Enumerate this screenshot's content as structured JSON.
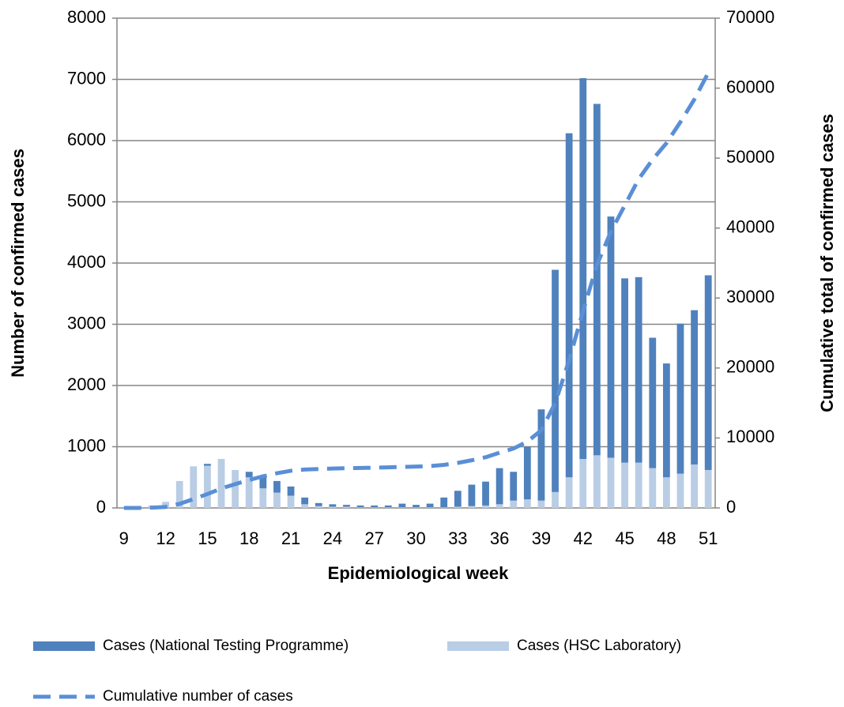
{
  "chart_data": {
    "type": "bar",
    "stacked": true,
    "x_label": "Epidemiological week",
    "y_label": "Number of confirmed cases",
    "y2_label": "Cumulative total of confirmed cases",
    "categories": [
      9,
      null,
      null,
      12,
      null,
      null,
      15,
      null,
      null,
      18,
      null,
      null,
      21,
      null,
      null,
      24,
      null,
      null,
      27,
      null,
      null,
      30,
      null,
      null,
      33,
      null,
      null,
      36,
      null,
      null,
      39,
      null,
      null,
      42,
      null,
      null,
      45,
      null,
      null,
      48,
      null,
      null,
      51
    ],
    "series": [
      {
        "name": "Cases (National Testing Programme)",
        "color": "#4f81bd",
        "type": "bar",
        "values": [
          0,
          0,
          0,
          0,
          0,
          0,
          30,
          0,
          0,
          90,
          210,
          190,
          150,
          110,
          50,
          40,
          30,
          30,
          30,
          30,
          60,
          40,
          60,
          160,
          260,
          350,
          390,
          590,
          470,
          860,
          1490,
          3630,
          5620,
          6220,
          5740,
          3940,
          3010,
          3030,
          2130,
          1860,
          2450,
          2520,
          3180
        ]
      },
      {
        "name": "Cases (HSC Laboratory)",
        "color": "#b9cde5",
        "type": "bar",
        "values": [
          0,
          5,
          40,
          100,
          440,
          680,
          690,
          800,
          620,
          500,
          320,
          250,
          200,
          60,
          30,
          20,
          20,
          10,
          10,
          10,
          10,
          10,
          10,
          10,
          20,
          30,
          40,
          60,
          120,
          140,
          120,
          260,
          500,
          800,
          860,
          820,
          740,
          740,
          650,
          500,
          560,
          710,
          620
        ]
      },
      {
        "name": "Cumulative number of cases",
        "color": "#5a8fd6",
        "type": "line",
        "axis": "y2",
        "dashed": true,
        "values": [
          0,
          5,
          45,
          145,
          585,
          1265,
          1985,
          2785,
          3405,
          3995,
          4525,
          4965,
          5315,
          5485,
          5565,
          5625,
          5675,
          5715,
          5755,
          5795,
          5865,
          5915,
          5985,
          6155,
          6435,
          6815,
          7245,
          7895,
          8485,
          9485,
          11095,
          14985,
          21105,
          28125,
          34725,
          39485,
          43235,
          47005,
          49785,
          52145,
          55155,
          58385,
          62185
        ]
      }
    ],
    "ylim": [
      0,
      8000
    ],
    "yticks": [
      0,
      1000,
      2000,
      3000,
      4000,
      5000,
      6000,
      7000,
      8000
    ],
    "y2lim": [
      0,
      70000
    ],
    "y2ticks": [
      0,
      10000,
      20000,
      30000,
      40000,
      50000,
      60000,
      70000
    ],
    "grid": true
  }
}
